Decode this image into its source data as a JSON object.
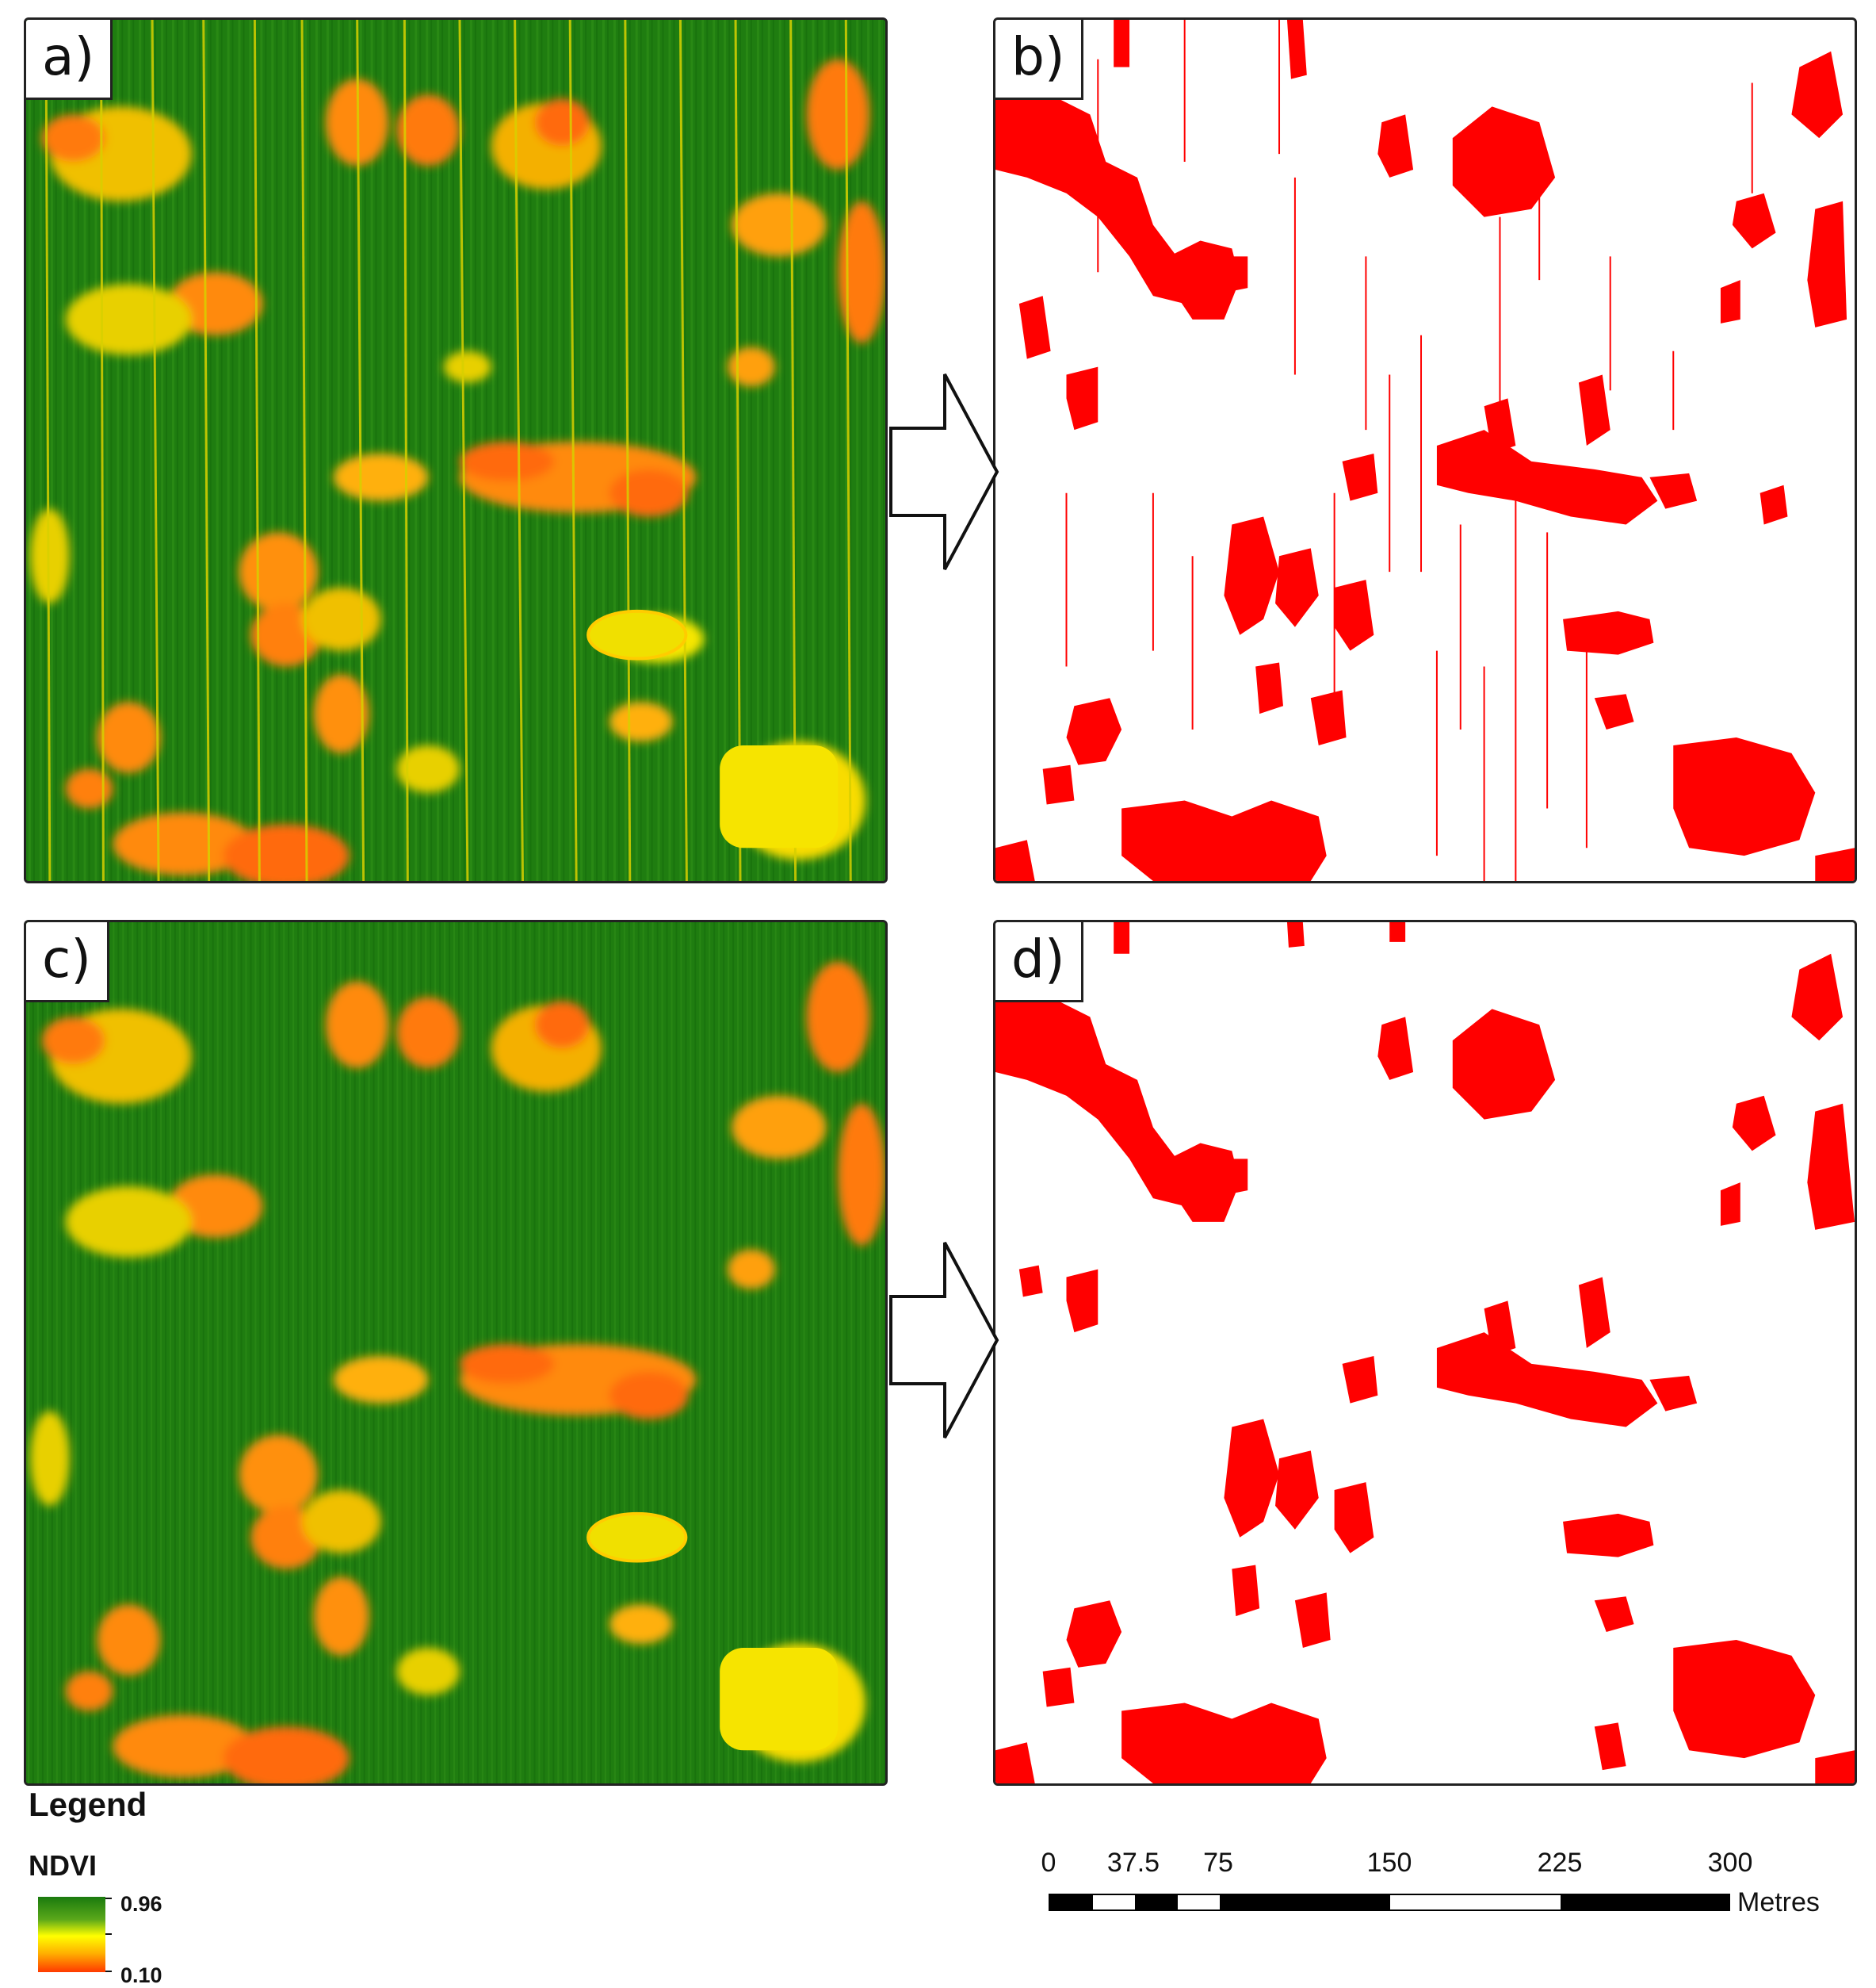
{
  "panels": {
    "a": {
      "label": "a)"
    },
    "b": {
      "label": "b)"
    },
    "c": {
      "label": "c)"
    },
    "d": {
      "label": "d)"
    }
  },
  "colors": {
    "ndvi_high": "#1a7a0e",
    "ndvi_mid": "#ffff00",
    "ndvi_low": "#ff3a00",
    "mask": "#ff0000"
  },
  "legend": {
    "title": "Legend",
    "variable": "NDVI",
    "max": "0.96",
    "min": "0.10"
  },
  "scale_bar": {
    "ticks": [
      "0",
      "37.5",
      "75",
      "150",
      "225",
      "300"
    ],
    "unit": "Metres"
  }
}
